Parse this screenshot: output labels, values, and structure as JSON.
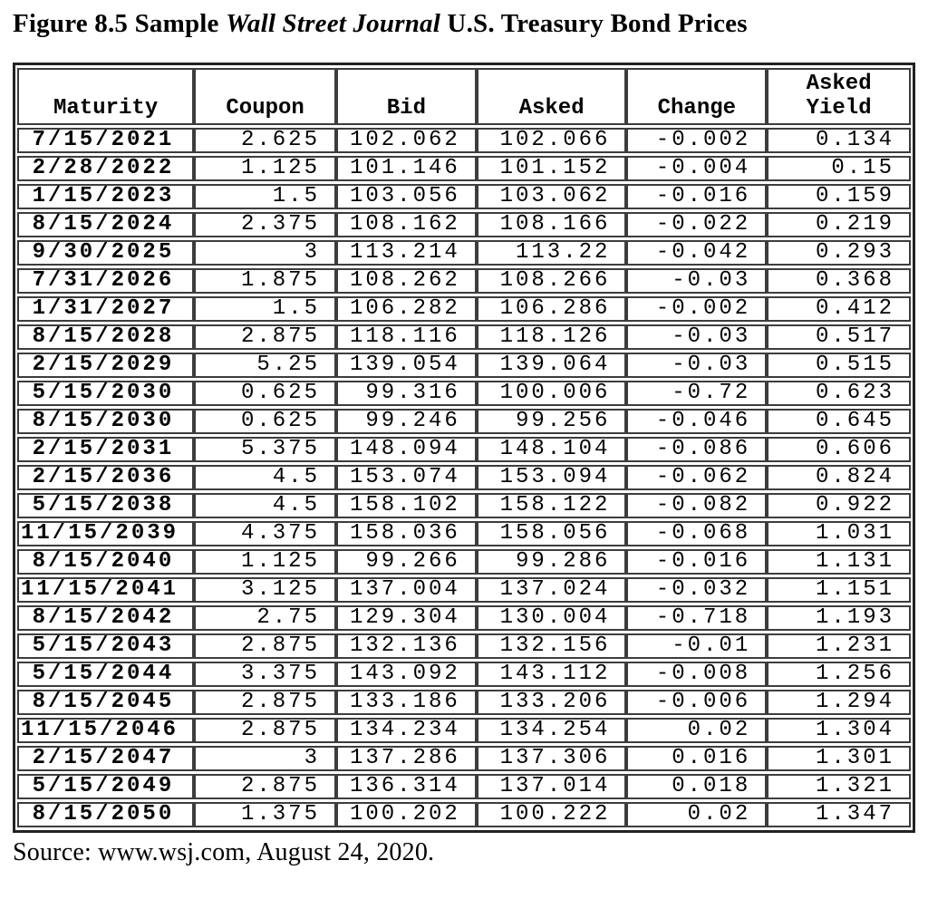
{
  "figure": {
    "title_prefix": "Figure 8.5 Sample ",
    "title_italic": "Wall Street Journal",
    "title_suffix": " U.S. Treasury Bond Prices",
    "source": "Source: www.wsj.com, August 24, 2020."
  },
  "table": {
    "columns": [
      "Maturity",
      "Coupon",
      "Bid",
      "Asked",
      "Change",
      "Asked\nYield"
    ],
    "column_keys": [
      "maturity",
      "coupon",
      "bid",
      "asked",
      "change",
      "asked-yield"
    ],
    "rows": [
      [
        "7/15/2021",
        "2.625",
        "102.062",
        "102.066",
        "-0.002",
        "0.134"
      ],
      [
        "2/28/2022",
        "1.125",
        "101.146",
        "101.152",
        "-0.004",
        "0.15"
      ],
      [
        "1/15/2023",
        "1.5",
        "103.056",
        "103.062",
        "-0.016",
        "0.159"
      ],
      [
        "8/15/2024",
        "2.375",
        "108.162",
        "108.166",
        "-0.022",
        "0.219"
      ],
      [
        "9/30/2025",
        "3",
        "113.214",
        "113.22",
        "-0.042",
        "0.293"
      ],
      [
        "7/31/2026",
        "1.875",
        "108.262",
        "108.266",
        "-0.03",
        "0.368"
      ],
      [
        "1/31/2027",
        "1.5",
        "106.282",
        "106.286",
        "-0.002",
        "0.412"
      ],
      [
        "8/15/2028",
        "2.875",
        "118.116",
        "118.126",
        "-0.03",
        "0.517"
      ],
      [
        "2/15/2029",
        "5.25",
        "139.054",
        "139.064",
        "-0.03",
        "0.515"
      ],
      [
        "5/15/2030",
        "0.625",
        "99.316",
        "100.006",
        "-0.72",
        "0.623"
      ],
      [
        "8/15/2030",
        "0.625",
        "99.246",
        "99.256",
        "-0.046",
        "0.645"
      ],
      [
        "2/15/2031",
        "5.375",
        "148.094",
        "148.104",
        "-0.086",
        "0.606"
      ],
      [
        "2/15/2036",
        "4.5",
        "153.074",
        "153.094",
        "-0.062",
        "0.824"
      ],
      [
        "5/15/2038",
        "4.5",
        "158.102",
        "158.122",
        "-0.082",
        "0.922"
      ],
      [
        "11/15/2039",
        "4.375",
        "158.036",
        "158.056",
        "-0.068",
        "1.031"
      ],
      [
        "8/15/2040",
        "1.125",
        "99.266",
        "99.286",
        "-0.016",
        "1.131"
      ],
      [
        "11/15/2041",
        "3.125",
        "137.004",
        "137.024",
        "-0.032",
        "1.151"
      ],
      [
        "8/15/2042",
        "2.75",
        "129.304",
        "130.004",
        "-0.718",
        "1.193"
      ],
      [
        "5/15/2043",
        "2.875",
        "132.136",
        "132.156",
        "-0.01",
        "1.231"
      ],
      [
        "5/15/2044",
        "3.375",
        "143.092",
        "143.112",
        "-0.008",
        "1.256"
      ],
      [
        "8/15/2045",
        "2.875",
        "133.186",
        "133.206",
        "-0.006",
        "1.294"
      ],
      [
        "11/15/2046",
        "2.875",
        "134.234",
        "134.254",
        "0.02",
        "1.304"
      ],
      [
        "2/15/2047",
        "3",
        "137.286",
        "137.306",
        "0.016",
        "1.301"
      ],
      [
        "5/15/2049",
        "2.875",
        "136.314",
        "137.014",
        "0.018",
        "1.321"
      ],
      [
        "8/15/2050",
        "1.375",
        "100.202",
        "100.222",
        "0.02",
        "1.347"
      ]
    ]
  }
}
